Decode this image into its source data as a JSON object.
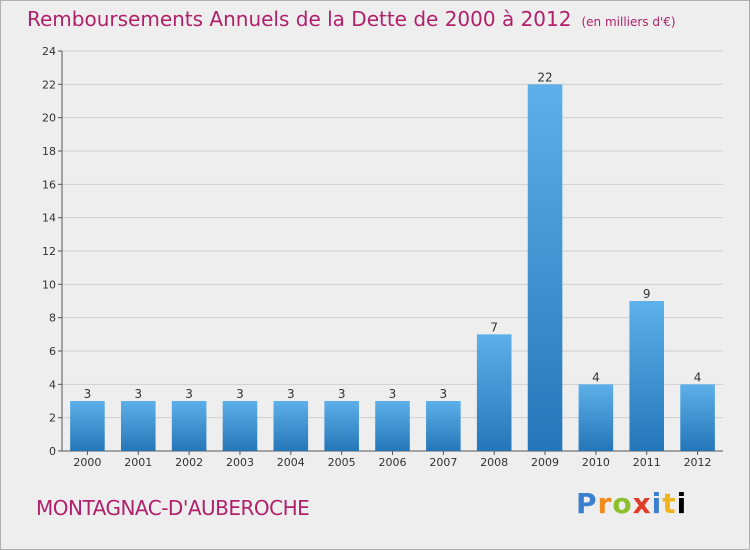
{
  "header": {
    "title": "Remboursements Annuels de la Dette de 2000 à 2012",
    "unit": "(en milliers d'€)"
  },
  "footer": {
    "commune": "MONTAGNAC-D'AUBEROCHE",
    "logo_letters": [
      "P",
      "r",
      "o",
      "x",
      "i",
      "t",
      "i"
    ]
  },
  "colors": {
    "title": "#b0206b",
    "bar_top": "#5eb0ea",
    "bar_bottom": "#2476b8",
    "grid": "#cfcfcf"
  },
  "chart_data": {
    "type": "bar",
    "title": "Remboursements Annuels de la Dette de 2000 à 2012",
    "xlabel": "",
    "ylabel": "",
    "categories": [
      "2000",
      "2001",
      "2002",
      "2003",
      "2004",
      "2005",
      "2006",
      "2007",
      "2008",
      "2009",
      "2010",
      "2011",
      "2012"
    ],
    "values": [
      3,
      3,
      3,
      3,
      3,
      3,
      3,
      3,
      7,
      22,
      4,
      9,
      4
    ],
    "ylim": [
      0,
      24
    ],
    "yticks": [
      0,
      2,
      4,
      6,
      8,
      10,
      12,
      14,
      16,
      18,
      20,
      22,
      24
    ],
    "grid": true,
    "data_labels": true
  }
}
